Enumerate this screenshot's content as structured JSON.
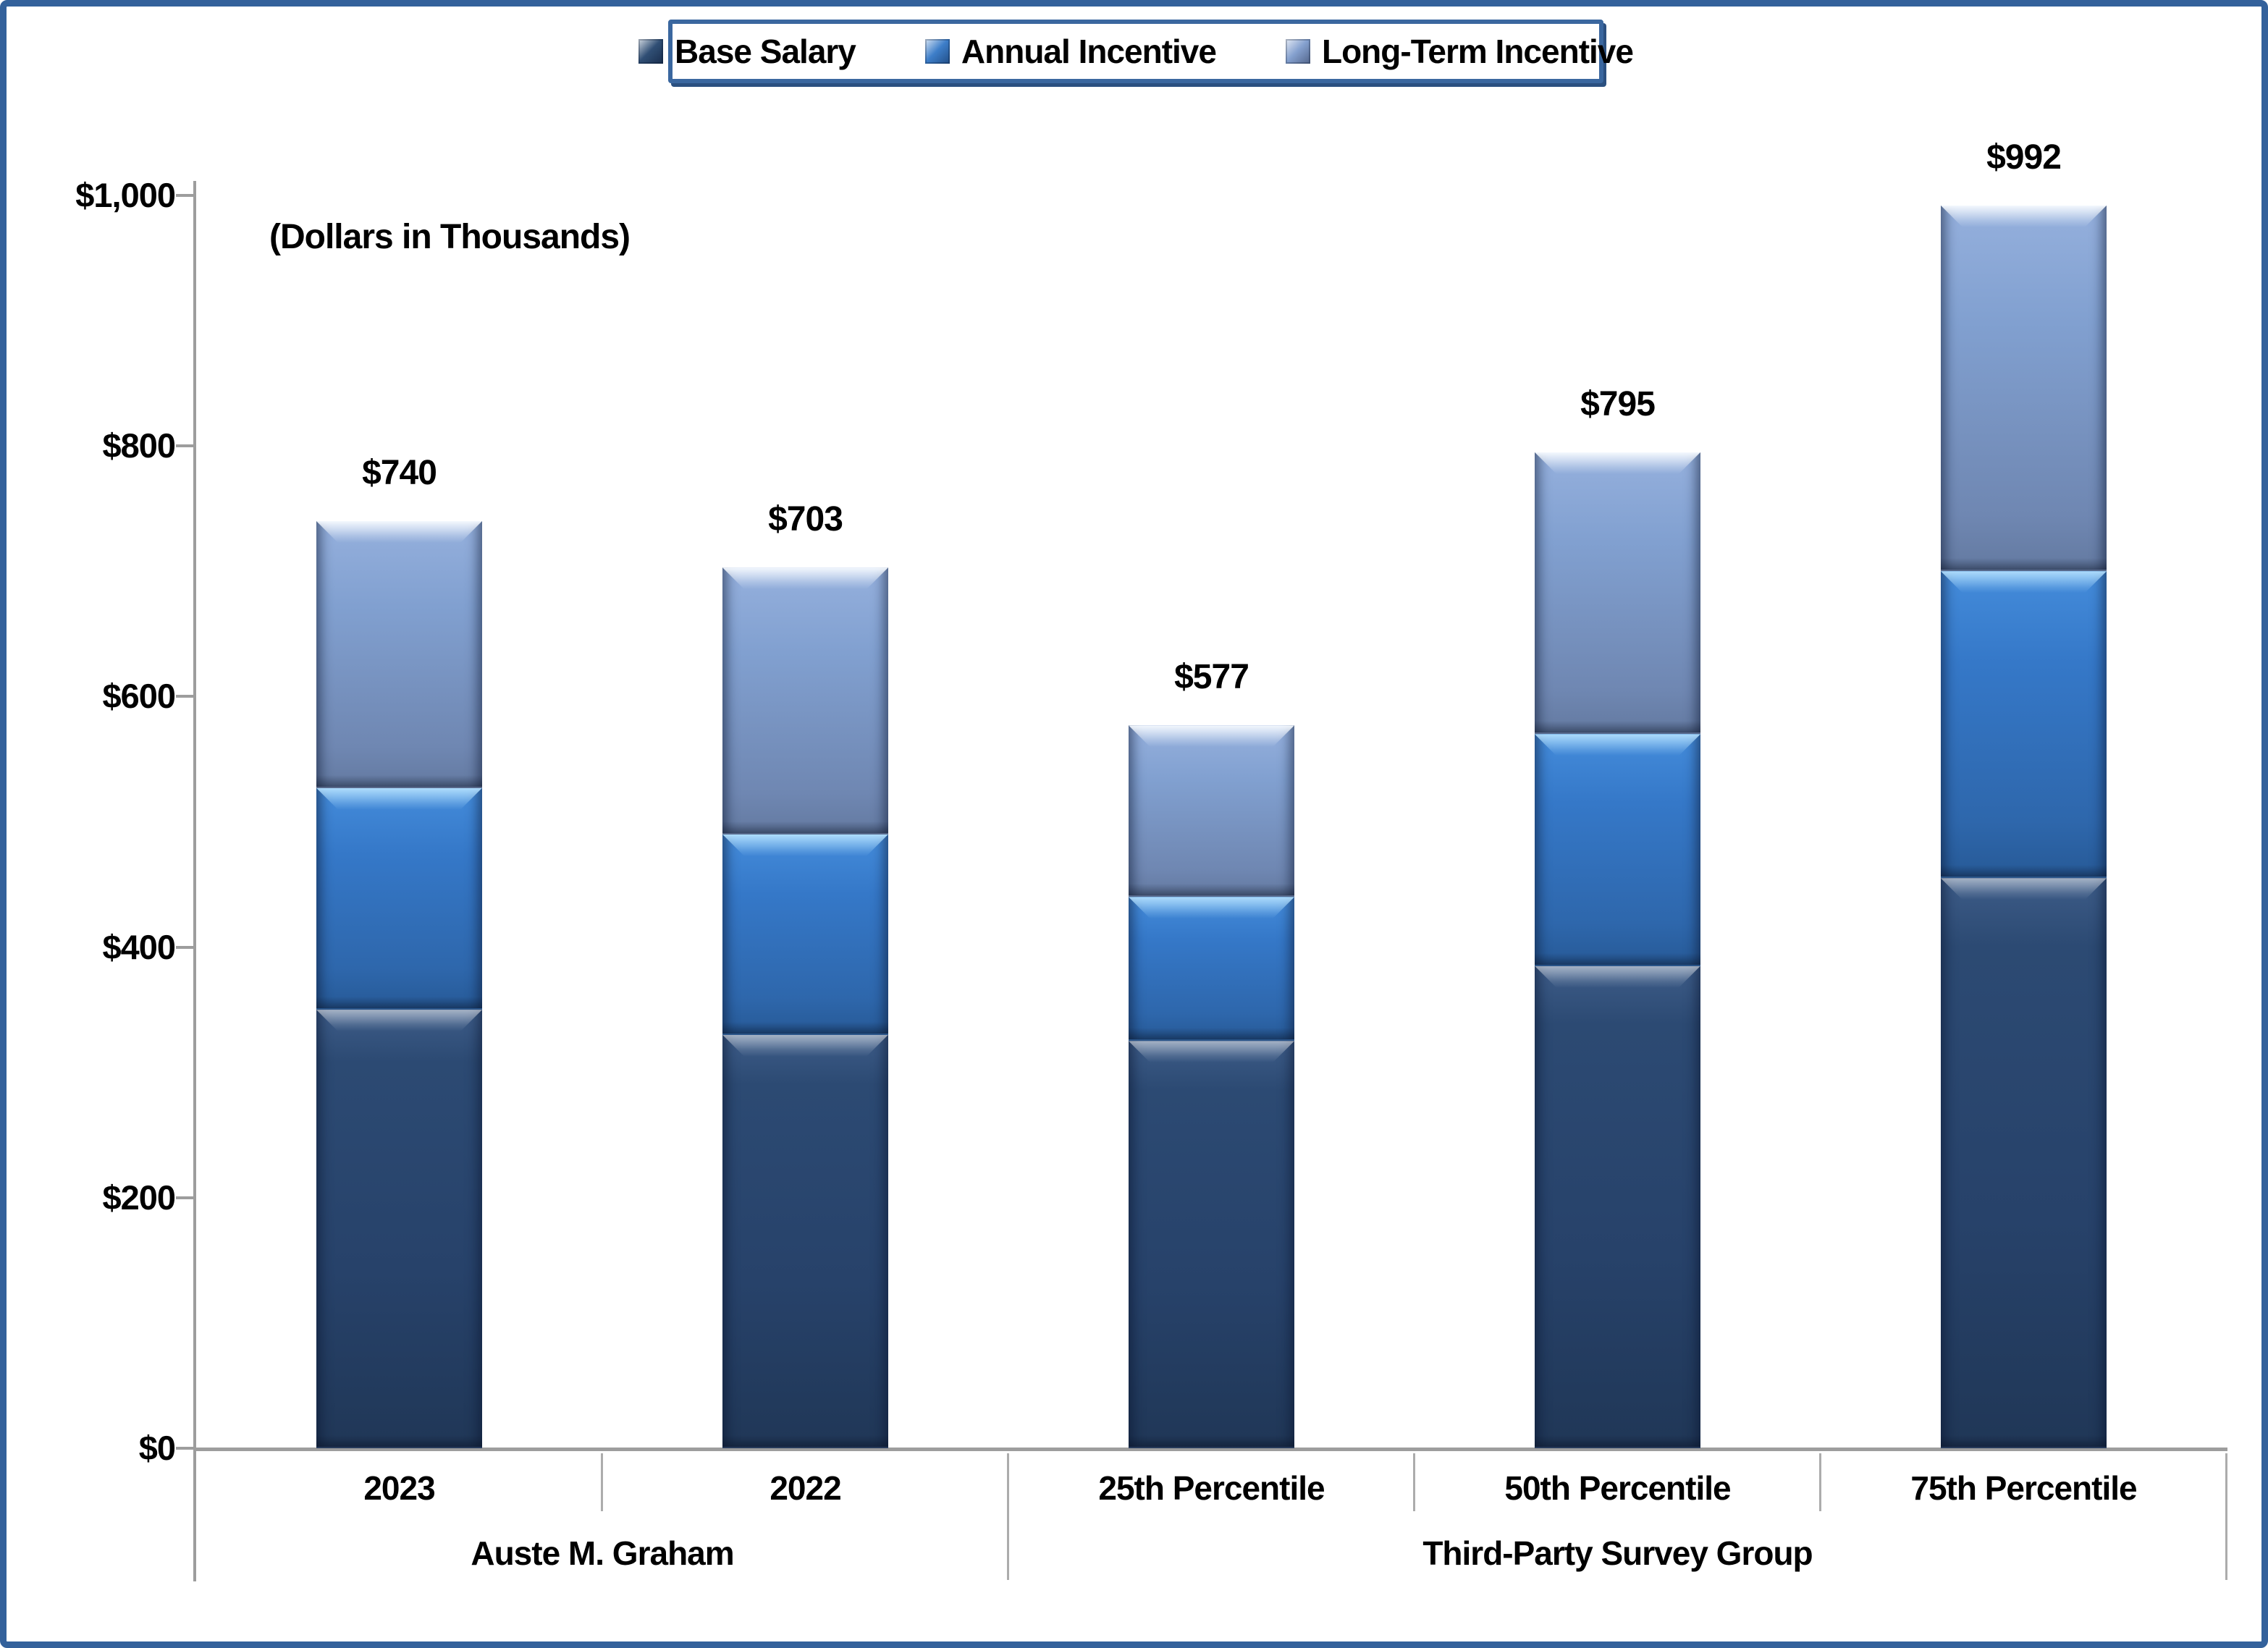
{
  "chart_data": {
    "type": "bar",
    "stacked": true,
    "subtitle": "(Dollars in Thousands)",
    "legend_position": "top",
    "categories": [
      "2023",
      "2022",
      "25th Percentile",
      "50th Percentile",
      "75th Percentile"
    ],
    "category_groups": [
      {
        "label": "Auste M. Graham",
        "span": 2
      },
      {
        "label": "Third-Party Survey Group",
        "span": 3
      }
    ],
    "series": [
      {
        "name": "Base Salary",
        "color": "#25456D",
        "values": [
          350,
          330,
          325,
          385,
          455
        ]
      },
      {
        "name": "Annual Incentive",
        "color": "#3377C6",
        "values": [
          177,
          160,
          115,
          185,
          245
        ]
      },
      {
        "name": "Long-Term Incentive",
        "color": "#7E9BCC",
        "values": [
          213,
          213,
          137,
          225,
          292
        ]
      }
    ],
    "totals": [
      740,
      703,
      577,
      795,
      992
    ],
    "total_labels": [
      "$740",
      "$703",
      "$577",
      "$795",
      "$992"
    ],
    "y_axis": {
      "min": 0,
      "max": 1000,
      "tick_step": 200,
      "tick_labels": [
        "$0",
        "$200",
        "$400",
        "$600",
        "$800",
        "$1,000"
      ],
      "gridlines": false
    },
    "colors": {
      "page_border": "#33619B",
      "legend_border": "#3A679F",
      "axis_line": "#9D9D9D",
      "text": "#000000"
    }
  }
}
